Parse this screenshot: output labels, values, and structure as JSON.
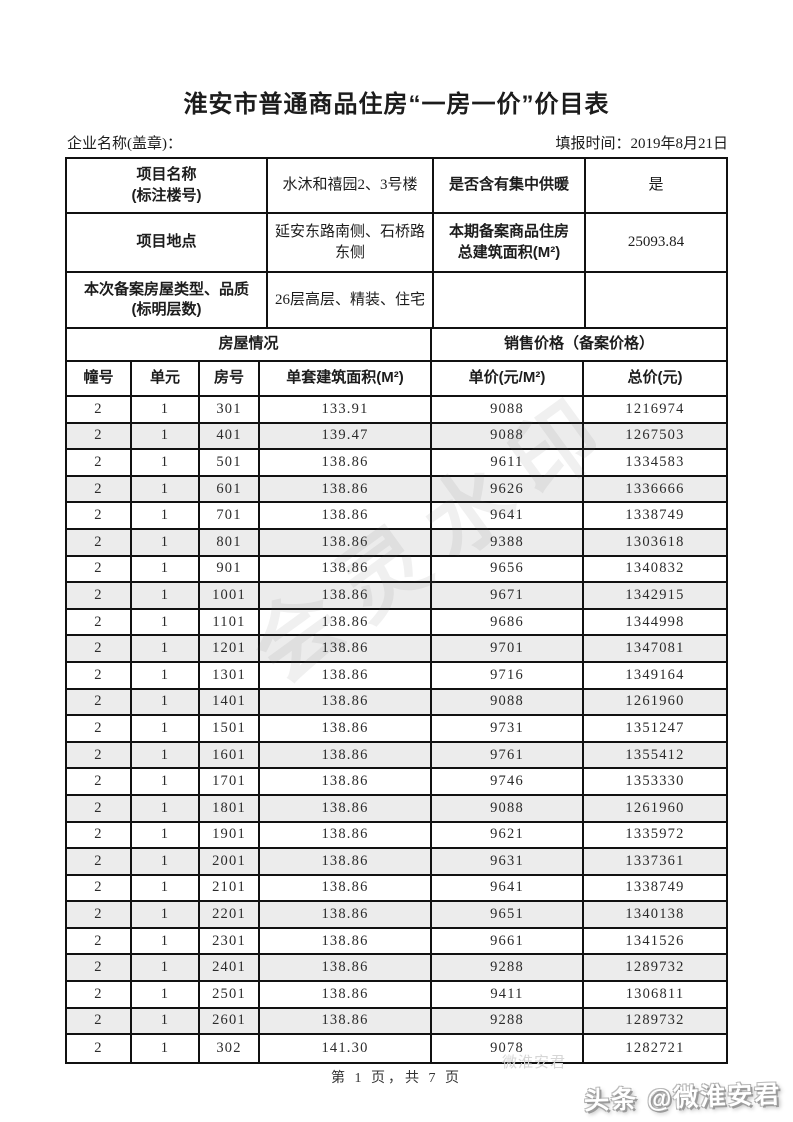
{
  "page": {
    "title": "淮安市普通商品住房“一房一价”价目表",
    "footer": "第 1 页，共 7 页"
  },
  "meta": {
    "company_label": "企业名称(盖章)：",
    "report_time": "填报时间：2019年8月21日"
  },
  "project_info": {
    "name_label": "项目名称\n(标注楼号)",
    "name_value": "水沐和禧园2、3号楼",
    "heating_label": "是否含有集中供暖",
    "heating_value": "是",
    "address_label": "项目地点",
    "address_value": "延安东路南侧、石桥路东侧",
    "area_label": "本期备案商品住房\n总建筑面积(M²)",
    "area_value": "25093.84",
    "type_label": "本次备案房屋类型、品质\n(标明层数)",
    "type_value": "26层高层、精装、住宅",
    "empty_1": "",
    "empty_2": ""
  },
  "sections": {
    "left": "房屋情况",
    "right": "销售价格（备案价格）"
  },
  "housing_table": {
    "columns": [
      "幢号",
      "单元",
      "房号",
      "单套建筑面积(M²)",
      "单价(元/M²)",
      "总价(元)"
    ],
    "rows": [
      [
        "2",
        "1",
        "301",
        "133.91",
        "9088",
        "1216974"
      ],
      [
        "2",
        "1",
        "401",
        "139.47",
        "9088",
        "1267503"
      ],
      [
        "2",
        "1",
        "501",
        "138.86",
        "9611",
        "1334583"
      ],
      [
        "2",
        "1",
        "601",
        "138.86",
        "9626",
        "1336666"
      ],
      [
        "2",
        "1",
        "701",
        "138.86",
        "9641",
        "1338749"
      ],
      [
        "2",
        "1",
        "801",
        "138.86",
        "9388",
        "1303618"
      ],
      [
        "2",
        "1",
        "901",
        "138.86",
        "9656",
        "1340832"
      ],
      [
        "2",
        "1",
        "1001",
        "138.86",
        "9671",
        "1342915"
      ],
      [
        "2",
        "1",
        "1101",
        "138.86",
        "9686",
        "1344998"
      ],
      [
        "2",
        "1",
        "1201",
        "138.86",
        "9701",
        "1347081"
      ],
      [
        "2",
        "1",
        "1301",
        "138.86",
        "9716",
        "1349164"
      ],
      [
        "2",
        "1",
        "1401",
        "138.86",
        "9088",
        "1261960"
      ],
      [
        "2",
        "1",
        "1501",
        "138.86",
        "9731",
        "1351247"
      ],
      [
        "2",
        "1",
        "1601",
        "138.86",
        "9761",
        "1355412"
      ],
      [
        "2",
        "1",
        "1701",
        "138.86",
        "9746",
        "1353330"
      ],
      [
        "2",
        "1",
        "1801",
        "138.86",
        "9088",
        "1261960"
      ],
      [
        "2",
        "1",
        "1901",
        "138.86",
        "9621",
        "1335972"
      ],
      [
        "2",
        "1",
        "2001",
        "138.86",
        "9631",
        "1337361"
      ],
      [
        "2",
        "1",
        "2101",
        "138.86",
        "9641",
        "1338749"
      ],
      [
        "2",
        "1",
        "2201",
        "138.86",
        "9651",
        "1340138"
      ],
      [
        "2",
        "1",
        "2301",
        "138.86",
        "9661",
        "1341526"
      ],
      [
        "2",
        "1",
        "2401",
        "138.86",
        "9288",
        "1289732"
      ],
      [
        "2",
        "1",
        "2501",
        "138.86",
        "9411",
        "1306811"
      ],
      [
        "2",
        "1",
        "2601",
        "138.86",
        "9288",
        "1289732"
      ],
      [
        "2",
        "1",
        "302",
        "141.30",
        "9078",
        "1282721"
      ]
    ]
  },
  "watermarks": {
    "diagonal": "会灵水印",
    "ghost": "微淮安君",
    "logo": "头条 @微淮安君"
  }
}
